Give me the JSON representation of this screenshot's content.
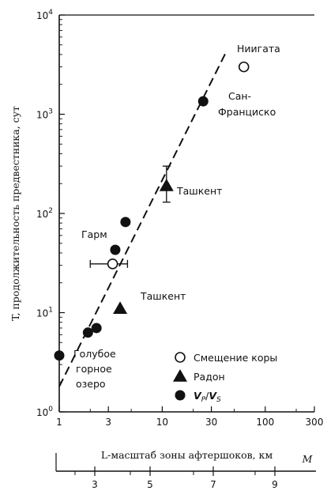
{
  "chart_data": {
    "type": "scatter",
    "x_scale": "log",
    "y_scale": "log",
    "xlim": [
      1,
      300
    ],
    "ylim": [
      1,
      10000
    ],
    "ylabel": "T, продолжительность предвестника, сут",
    "xlabel": "L-масштаб зоны афтершоков, км",
    "magnitude_axis_label": "M",
    "x_ticks": [
      {
        "value": 1,
        "label": "1"
      },
      {
        "value": 3,
        "label": "3"
      },
      {
        "value": 10,
        "label": "10"
      },
      {
        "value": 30,
        "label": "30"
      },
      {
        "value": 100,
        "label": "100"
      },
      {
        "value": 300,
        "label": "300"
      }
    ],
    "y_ticks": [
      {
        "value": 1,
        "label": "10",
        "exp": "0"
      },
      {
        "value": 10,
        "label": "10",
        "exp": "1"
      },
      {
        "value": 100,
        "label": "10",
        "exp": "2"
      },
      {
        "value": 1000,
        "label": "10",
        "exp": "3"
      },
      {
        "value": 10000,
        "label": "10",
        "exp": "4"
      }
    ],
    "magnitude_ticks": [
      "3",
      "5",
      "7",
      "9"
    ],
    "trend_line": {
      "style": "dashed",
      "from": [
        1,
        1.8
      ],
      "to": [
        42,
        4300
      ]
    },
    "series": [
      {
        "name": "Смещение коры",
        "marker": "open-circle",
        "points": [
          {
            "x": 62,
            "y": 3000
          },
          {
            "x": 3.3,
            "y": 31,
            "xerr": [
              2.0,
              4.6
            ]
          }
        ]
      },
      {
        "name": "Радон",
        "marker": "triangle",
        "points": [
          {
            "x": 11,
            "y": 190,
            "yerr": [
              130,
              300
            ]
          },
          {
            "x": 3.9,
            "y": 11
          }
        ]
      },
      {
        "name": "V_P/V_S",
        "marker": "filled-circle",
        "points": [
          {
            "x": 1.0,
            "y": 3.7
          },
          {
            "x": 1.9,
            "y": 6.3
          },
          {
            "x": 2.3,
            "y": 7.0
          },
          {
            "x": 3.5,
            "y": 43
          },
          {
            "x": 4.4,
            "y": 82
          },
          {
            "x": 25,
            "y": 1350
          }
        ]
      }
    ],
    "annotations": [
      {
        "text": "Ниигата"
      },
      {
        "text": "Сан-"
      },
      {
        "text": "Франциско"
      },
      {
        "text": "Ташкент"
      },
      {
        "text": "Гарм"
      },
      {
        "text": "Ташкент"
      },
      {
        "text": "Голубое"
      },
      {
        "text": "горное"
      },
      {
        "text": "озеро"
      }
    ],
    "legend": {
      "position": "bottom-right",
      "entries": [
        {
          "label": "Смещение коры",
          "marker": "open-circle"
        },
        {
          "label": "Радон",
          "marker": "triangle"
        },
        {
          "label": "V_P/V_S",
          "marker": "filled-circle"
        }
      ]
    }
  }
}
